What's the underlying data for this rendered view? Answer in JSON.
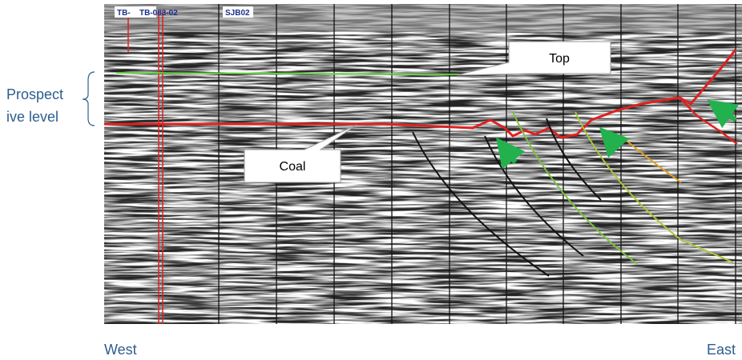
{
  "wells": [
    "TB-",
    "TB-083-02",
    "SJB02"
  ],
  "callouts": {
    "top": "Top",
    "coal": "Coal"
  },
  "prospect_label": [
    "Prospect",
    "ive level"
  ],
  "directions": {
    "west": "West",
    "east": "East"
  }
}
